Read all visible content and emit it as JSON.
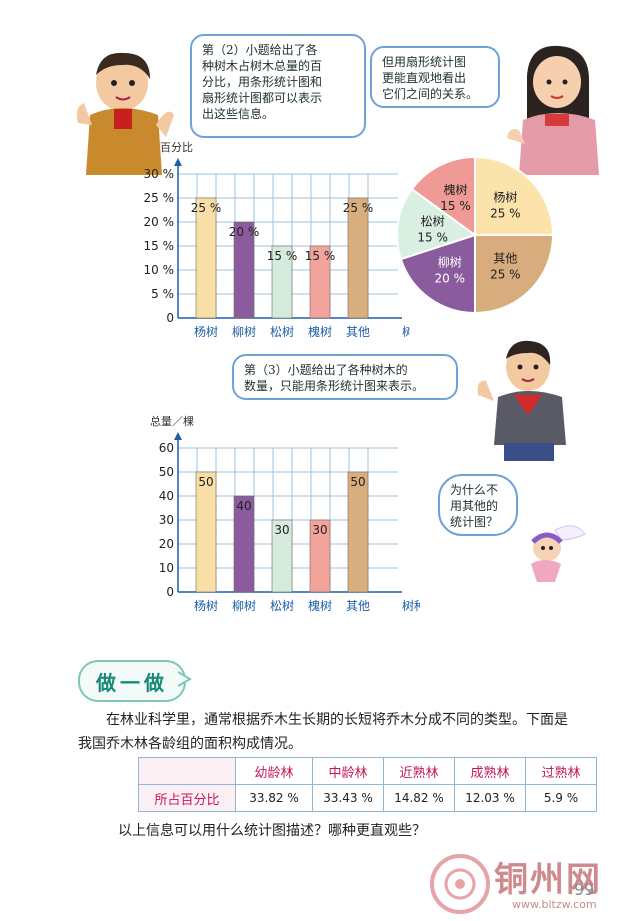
{
  "bubbles": {
    "q2": "第（2）小题给出了各\n种树木占树木总量的百\n分比，用条形统计图和\n扇形统计图都可以表示\n出这些信息。",
    "pie_note": "但用扇形统计图\n更能直观地看出\n它们之间的关系。",
    "q3": "第（3）小题给出了各种树木的\n数量，只能用条形统计图来表示。",
    "why": "为什么不\n用其他的\n统计图？"
  },
  "bar_chart_percent": {
    "ylabel": "百分比",
    "xlabel": "树种",
    "yticks": [
      "0",
      "5 %",
      "10 %",
      "15 %",
      "20 %",
      "25 %",
      "30 %"
    ]
  },
  "bar_chart_count": {
    "ylabel": "总量／棵",
    "xlabel": "树种",
    "yticks": [
      "0",
      "10",
      "20",
      "30",
      "40",
      "50",
      "60"
    ]
  },
  "section": {
    "title": "做一做",
    "paragraph": "在林业科学里，通常根据乔木生长期的长短将乔木分成不同的类型。下面是我国乔木林各龄组的面积构成情况。",
    "question": "以上信息可以用什么统计图描述？哪种更直观些？"
  },
  "table": {
    "headers": [
      "",
      "幼龄林",
      "中龄林",
      "近熟林",
      "成熟林",
      "过熟林"
    ],
    "row_label": "所占百分比",
    "values": [
      "33.82 %",
      "33.43 %",
      "14.82 %",
      "12.03 %",
      "5.9 %"
    ]
  },
  "page": {
    "number": "99"
  },
  "watermark": {
    "name": "铜州网",
    "url": "www.bltzw.com"
  },
  "chart_data": [
    {
      "type": "bar",
      "categories": [
        "杨树",
        "柳树",
        "松树",
        "槐树",
        "其他"
      ],
      "values": [
        25,
        20,
        15,
        15,
        25
      ],
      "value_labels": [
        "25 %",
        "20 %",
        "15 %",
        "15 %",
        "25 %"
      ],
      "colors": [
        "#f8dfa6",
        "#8a5c9e",
        "#d4ebde",
        "#f2a49c",
        "#d9ae7e"
      ],
      "ylabel": "百分比",
      "xlabel": "树种",
      "ylim": [
        0,
        30
      ]
    },
    {
      "type": "pie",
      "slices": [
        {
          "label": "杨树",
          "value": 25,
          "text": "25 %",
          "color": "#fce2ab"
        },
        {
          "label": "其他",
          "value": 25,
          "text": "25 %",
          "color": "#d8ac7c"
        },
        {
          "label": "柳树",
          "value": 20,
          "text": "20 %",
          "color": "#8a5c9e"
        },
        {
          "label": "松树",
          "value": 15,
          "text": "15 %",
          "color": "#d9efe2"
        },
        {
          "label": "槐树",
          "value": 15,
          "text": "15 %",
          "color": "#ef9a94"
        }
      ]
    },
    {
      "type": "bar",
      "categories": [
        "杨树",
        "柳树",
        "松树",
        "槐树",
        "其他"
      ],
      "values": [
        50,
        40,
        30,
        30,
        50
      ],
      "value_labels": [
        "50",
        "40",
        "30",
        "30",
        "50"
      ],
      "colors": [
        "#f8dfa6",
        "#8a5c9e",
        "#d4ebde",
        "#f2a49c",
        "#d9ae7e"
      ],
      "ylabel": "总量／棵",
      "xlabel": "树种",
      "ylim": [
        0,
        60
      ]
    }
  ]
}
